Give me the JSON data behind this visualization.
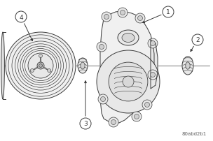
{
  "fig_label": "80abd2b1",
  "background_color": "#ffffff",
  "line_color": "#3a3a3a",
  "fig_width": 3.04,
  "fig_height": 2.03,
  "dpi": 100
}
